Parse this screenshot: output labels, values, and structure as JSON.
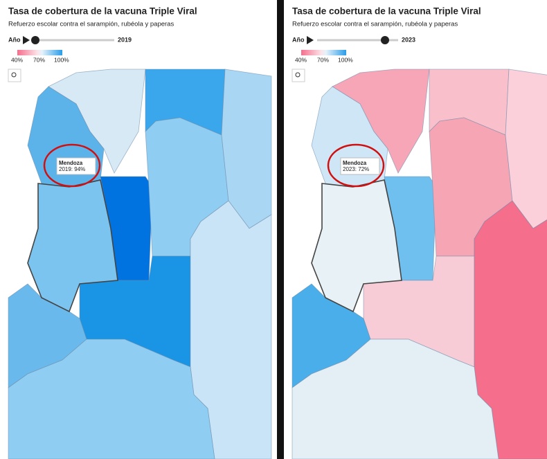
{
  "panels": [
    {
      "title": "Tasa de cobertura de la vacuna Triple Viral",
      "subtitle": "Refuerzo escolar contra el sarampión, rubéola y paperas",
      "slider_label": "Año",
      "year": "2019",
      "legend": [
        "40%",
        "70%",
        "100%"
      ],
      "tooltip": {
        "name": "Mendoza",
        "text": "2019: 94%"
      }
    },
    {
      "title": "Tasa de cobertura de la vacuna Triple Viral",
      "subtitle": "Refuerzo escolar contra el sarampión, rubéola y paperas",
      "slider_label": "Año",
      "year": "2023",
      "legend": [
        "40%",
        "70%",
        "100%"
      ],
      "tooltip": {
        "name": "Mendoza",
        "text": "2023: 72%"
      }
    }
  ]
}
